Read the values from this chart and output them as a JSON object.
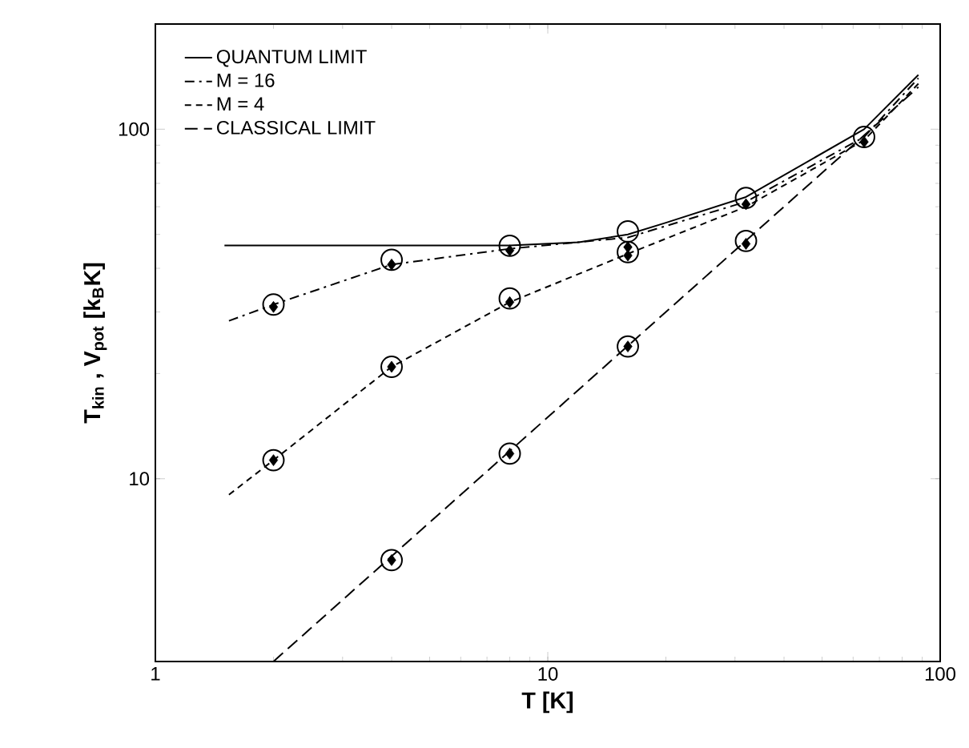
{
  "chart_data": {
    "type": "line",
    "xlabel": "T [K]",
    "ylabel": "T$_{kin}$ , V$_{pot}$ [k$_{B}$K]",
    "log": "xy",
    "xlim": [
      1,
      100
    ],
    "ylim": [
      3,
      200
    ],
    "xticks": [
      1,
      10,
      100
    ],
    "yticks": [
      10,
      100
    ],
    "legend": "top left",
    "grid": false,
    "series": [
      {
        "name": "QUANTUM LIMIT",
        "color": "#000000",
        "line_style": "solid",
        "marker": "none",
        "x": [
          1.5,
          4,
          8,
          12,
          16,
          20,
          32,
          64,
          88
        ],
        "values": [
          46.5,
          46.5,
          46.5,
          47.5,
          50,
          54,
          64,
          100,
          143
        ]
      },
      {
        "name": "M = 16",
        "color": "#000000",
        "line_style": "dashdot",
        "marker": "none",
        "x": [
          1.54,
          2,
          4,
          8,
          16,
          32,
          64,
          88
        ],
        "values": [
          28.3,
          31.5,
          41,
          45.5,
          49,
          62,
          95,
          140
        ]
      },
      {
        "name": "M =  4",
        "color": "#000000",
        "line_style": "dashed",
        "marker": "none",
        "x": [
          1.54,
          2,
          4,
          8,
          16,
          32,
          64,
          88
        ],
        "values": [
          9,
          11.3,
          20.9,
          32,
          44,
          60,
          93,
          135
        ]
      },
      {
        "name": "CLASSICAL LIMIT",
        "color": "#000000",
        "line_style": "longdashed",
        "marker": "none",
        "x": [
          2,
          4,
          8,
          16,
          32,
          64,
          88
        ],
        "values": [
          3,
          6,
          12,
          24,
          48,
          96,
          132
        ]
      },
      {
        "type": "scatter",
        "color": "#000000",
        "marker": "circle",
        "x": [
          2,
          2,
          4,
          4,
          4,
          8,
          8,
          8,
          16,
          16,
          16,
          32,
          32,
          64
        ],
        "values": [
          31.5,
          11.3,
          42.3,
          20.9,
          5.85,
          46.4,
          32.8,
          11.8,
          51,
          44.5,
          23.9,
          63.6,
          47.9,
          95
        ]
      },
      {
        "type": "scatter",
        "color": "#000000",
        "marker": "diamond",
        "x": [
          2,
          2,
          4,
          4,
          4,
          8,
          8,
          8,
          16,
          16,
          16,
          32,
          32,
          64
        ],
        "values": [
          31,
          11.3,
          41,
          20.9,
          5.85,
          45,
          32,
          11.8,
          46,
          43.5,
          23.9,
          61,
          47,
          92
        ]
      }
    ]
  }
}
